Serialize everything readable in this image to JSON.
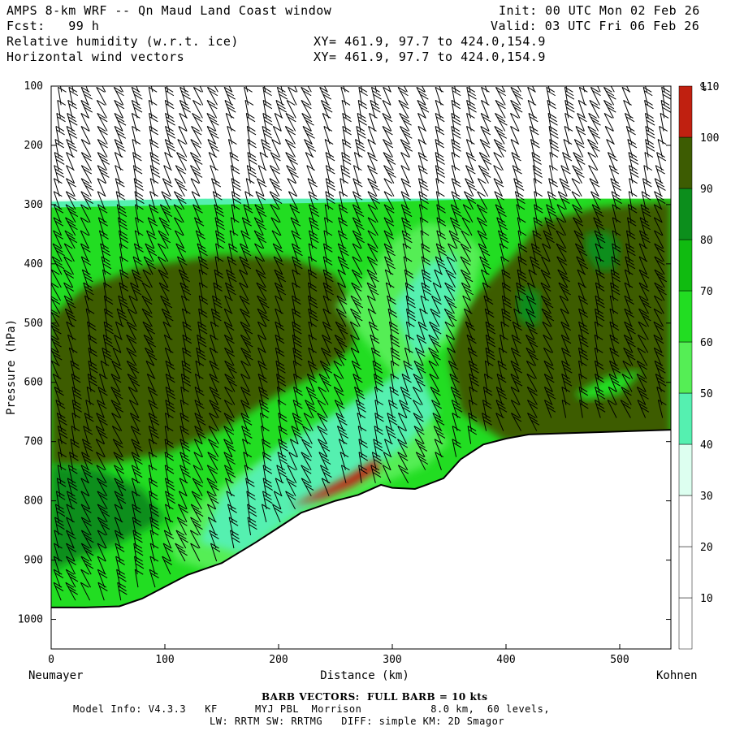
{
  "header": {
    "title": "AMPS 8-km WRF -- Qn Maud Land Coast window",
    "fcst": "Fcst:   99 h",
    "init": "Init: 00 UTC Mon 02 Feb 26",
    "valid": "Valid: 03 UTC Fri 06 Feb 26",
    "field1": "Relative humidity (w.r.t. ice)",
    "field2": "Horizontal wind vectors",
    "xy1": "XY= 461.9, 97.7 to 424.0,154.9",
    "xy2": "XY= 461.9, 97.7 to 424.0,154.9"
  },
  "footer": {
    "barb_note": "BARB VECTORS:  FULL BARB = 10 kts",
    "model_info": "Model Info: V4.3.3   KF      MYJ PBL  Morrison           8.0 km,  60 levels,",
    "model_info2": "LW: RRTM SW: RRTMG   DIFF: simple KM: 2D Smagor"
  },
  "colors": {
    "bands": [
      "#ffffff",
      "#ffffff",
      "#ffffff",
      "#ddfff0",
      "#55f0b0",
      "#55ee55",
      "#22dd22",
      "#10bb10",
      "#0c8e1c",
      "#3d5c02",
      "#c02010"
    ],
    "terrain": "#ffffff",
    "barb": "#000000"
  },
  "chart_data": {
    "type": "heatmap",
    "title": "Relative humidity (w.r.t. ice)",
    "xlabel": "Distance (km)",
    "ylabel": "Pressure (hPa)",
    "x_ticks": [
      0,
      100,
      200,
      300,
      400,
      500
    ],
    "y_ticks": [
      100,
      200,
      300,
      400,
      500,
      600,
      700,
      800,
      900,
      1000
    ],
    "xlim": [
      0,
      545
    ],
    "ylim": [
      1050,
      100
    ],
    "x_start_label": "Neumayer",
    "x_end_label": "Kohnen",
    "colorbar": {
      "unit": "%",
      "levels": [
        10,
        20,
        30,
        40,
        50,
        60,
        70,
        80,
        90,
        100,
        110
      ]
    },
    "terrain_surface": {
      "x": [
        0,
        30,
        60,
        80,
        100,
        120,
        150,
        180,
        200,
        220,
        250,
        270,
        290,
        300,
        320,
        330,
        345,
        360,
        380,
        400,
        420,
        450,
        500,
        545
      ],
      "p": [
        980,
        980,
        978,
        965,
        945,
        925,
        905,
        870,
        845,
        820,
        800,
        790,
        773,
        778,
        780,
        773,
        762,
        730,
        705,
        695,
        688,
        686,
        683,
        680
      ]
    },
    "tropopause_dry_top_hPa": 290,
    "wind_barb_columns_km": [
      8,
      20,
      34,
      48,
      62,
      76,
      90,
      104,
      118,
      132,
      146,
      160,
      174,
      188,
      202,
      216,
      230,
      244,
      258,
      272,
      286,
      300,
      314,
      328,
      342,
      356,
      370,
      384,
      398,
      412,
      426,
      440,
      454,
      468,
      482,
      496,
      510,
      524,
      538
    ]
  }
}
